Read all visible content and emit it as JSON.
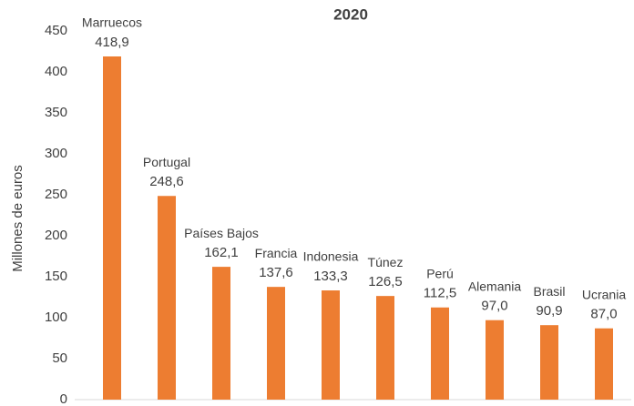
{
  "chart_data": {
    "type": "bar",
    "title": "2020",
    "y_label": "Millones de euros",
    "categories": [
      "Marruecos",
      "Portugal",
      "Países Bajos",
      "Francia",
      "Indonesia",
      "Túnez",
      "Perú",
      "Alemania",
      "Brasil",
      "Ucrania"
    ],
    "values": [
      418.9,
      248.6,
      162.1,
      137.6,
      133.3,
      126.5,
      112.5,
      97.0,
      90.9,
      87.0
    ],
    "value_labels": [
      "418,9",
      "248,6",
      "162,1",
      "137,6",
      "133,3",
      "126,5",
      "112,5",
      "97,0",
      "90,9",
      "87,0"
    ],
    "color": "#ed7d31",
    "ylim": [
      0,
      450
    ],
    "yticks": [
      0,
      50,
      100,
      150,
      200,
      250,
      300,
      350,
      400,
      450
    ],
    "grid": false
  }
}
